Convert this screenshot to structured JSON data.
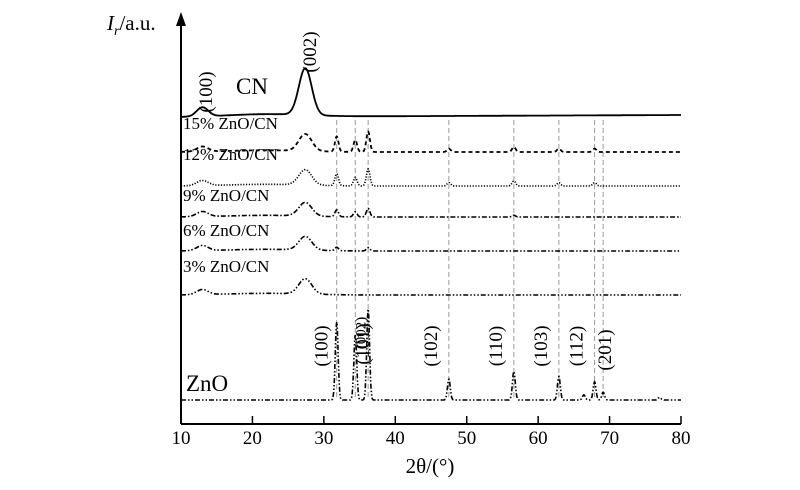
{
  "chart_data": {
    "type": "line",
    "title": "",
    "xlabel": "2θ/(°)",
    "ylabel": "Ir/a.u.",
    "ylabel_main": "I",
    "ylabel_sub": "r",
    "ylabel_unit": "/a.u.",
    "xlim": [
      10,
      80
    ],
    "x_ticks": [
      10,
      20,
      30,
      40,
      50,
      60,
      70,
      80
    ],
    "y_ticks_shown": false,
    "grid": false,
    "legend": "none",
    "series": [
      {
        "name": "CN",
        "baseline": 0.93,
        "peaks": [
          {
            "x": 13.0,
            "h": 0.035,
            "w": 0.8
          },
          {
            "x": 27.4,
            "h": 0.18,
            "w": 0.9
          }
        ]
      },
      {
        "name": "15% ZnO/CN",
        "baseline": 0.5,
        "peaks": [
          {
            "x": 13.0,
            "h": 0.03,
            "w": 0.8
          },
          {
            "x": 27.4,
            "h": 0.1,
            "w": 0.9
          },
          {
            "x": 31.8,
            "h": 0.09,
            "w": 0.25
          },
          {
            "x": 34.4,
            "h": 0.07,
            "w": 0.25
          },
          {
            "x": 36.2,
            "h": 0.12,
            "w": 0.25
          },
          {
            "x": 47.5,
            "h": 0.02,
            "w": 0.25
          },
          {
            "x": 56.6,
            "h": 0.03,
            "w": 0.25
          },
          {
            "x": 62.9,
            "h": 0.02,
            "w": 0.25
          },
          {
            "x": 67.9,
            "h": 0.02,
            "w": 0.25
          }
        ]
      },
      {
        "name": "12% ZnO/CN",
        "baseline": 0.0,
        "peaks": [
          {
            "x": 13.0,
            "h": 0.03,
            "w": 0.8
          },
          {
            "x": 27.4,
            "h": 0.09,
            "w": 0.9
          },
          {
            "x": 31.8,
            "h": 0.07,
            "w": 0.25
          },
          {
            "x": 34.4,
            "h": 0.05,
            "w": 0.25
          },
          {
            "x": 36.2,
            "h": 0.1,
            "w": 0.25
          },
          {
            "x": 47.5,
            "h": 0.02,
            "w": 0.25
          },
          {
            "x": 56.6,
            "h": 0.03,
            "w": 0.25
          },
          {
            "x": 62.9,
            "h": 0.02,
            "w": 0.25
          },
          {
            "x": 67.9,
            "h": 0.02,
            "w": 0.25
          }
        ]
      },
      {
        "name": "9% ZnO/CN",
        "baseline": 0.0,
        "peaks": [
          {
            "x": 13.0,
            "h": 0.03,
            "w": 0.8
          },
          {
            "x": 27.4,
            "h": 0.08,
            "w": 0.9
          },
          {
            "x": 31.8,
            "h": 0.04,
            "w": 0.25
          },
          {
            "x": 34.4,
            "h": 0.03,
            "w": 0.25
          },
          {
            "x": 36.2,
            "h": 0.05,
            "w": 0.25
          },
          {
            "x": 56.6,
            "h": 0.01,
            "w": 0.25
          }
        ]
      },
      {
        "name": "6% ZnO/CN",
        "baseline": 0.0,
        "peaks": [
          {
            "x": 13.0,
            "h": 0.03,
            "w": 0.8
          },
          {
            "x": 27.4,
            "h": 0.08,
            "w": 0.9
          },
          {
            "x": 31.8,
            "h": 0.02,
            "w": 0.25
          },
          {
            "x": 36.2,
            "h": 0.02,
            "w": 0.25
          }
        ]
      },
      {
        "name": "3% ZnO/CN",
        "baseline": 0.0,
        "peaks": [
          {
            "x": 13.0,
            "h": 0.03,
            "w": 0.8
          },
          {
            "x": 27.4,
            "h": 0.09,
            "w": 0.9
          }
        ]
      },
      {
        "name": "ZnO",
        "baseline": 0.0,
        "peaks": [
          {
            "x": 31.8,
            "h": 0.3,
            "w": 0.2
          },
          {
            "x": 34.4,
            "h": 0.25,
            "w": 0.2
          },
          {
            "x": 36.2,
            "h": 0.35,
            "w": 0.2
          },
          {
            "x": 47.5,
            "h": 0.08,
            "w": 0.2
          },
          {
            "x": 56.6,
            "h": 0.11,
            "w": 0.2
          },
          {
            "x": 62.9,
            "h": 0.09,
            "w": 0.2
          },
          {
            "x": 66.4,
            "h": 0.02,
            "w": 0.2
          },
          {
            "x": 67.9,
            "h": 0.07,
            "w": 0.2
          },
          {
            "x": 69.1,
            "h": 0.03,
            "w": 0.2
          },
          {
            "x": 77.0,
            "h": 0.01,
            "w": 0.2
          }
        ]
      }
    ],
    "cn_peak_labels": [
      {
        "label": "(100)",
        "x": 13.0
      },
      {
        "label": "(002)",
        "x": 27.4
      }
    ],
    "zno_peak_labels": [
      {
        "label": "(100)",
        "x": 31.8
      },
      {
        "label": "(002)",
        "x": 34.4
      },
      {
        "label": "(101)",
        "x": 36.2
      },
      {
        "label": "(102)",
        "x": 47.5
      },
      {
        "label": "(110)",
        "x": 56.6
      },
      {
        "label": "(103)",
        "x": 62.9
      },
      {
        "label": "(112)",
        "x": 67.9
      },
      {
        "label": "(201)",
        "x": 69.1
      }
    ],
    "reference_lines_x": [
      31.8,
      34.4,
      36.2,
      47.5,
      56.6,
      62.9,
      67.9,
      69.1
    ]
  }
}
